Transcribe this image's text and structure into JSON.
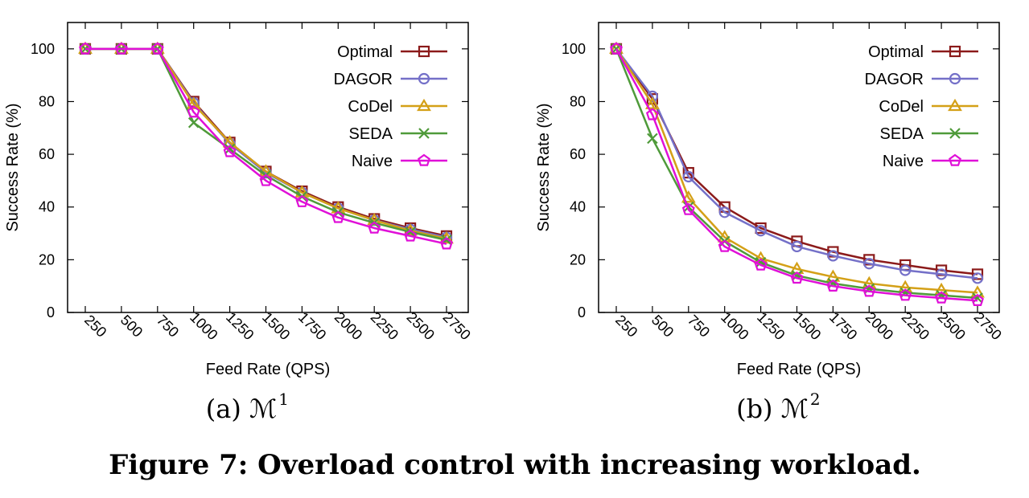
{
  "figure": {
    "caption": "Figure 7: Overload control with increasing workload."
  },
  "series_styles": [
    {
      "name": "Optimal",
      "color": "#8b1a1a",
      "marker": "square"
    },
    {
      "name": "DAGOR",
      "color": "#7470c8",
      "marker": "circle"
    },
    {
      "name": "CoDel",
      "color": "#d4a017",
      "marker": "triangle"
    },
    {
      "name": "SEDA",
      "color": "#4f9a3a",
      "marker": "cross"
    },
    {
      "name": "Naive",
      "color": "#e010d8",
      "marker": "pentagon"
    }
  ],
  "chart_data": [
    {
      "type": "line",
      "subcaption": "(a) ℳ",
      "subcaption_sup": "1",
      "xlabel": "Feed Rate (QPS)",
      "ylabel": "Success Rate (%)",
      "ylim": [
        0,
        110
      ],
      "yticks": [
        0,
        20,
        40,
        60,
        80,
        100
      ],
      "categories": [
        "250",
        "500",
        "750",
        "1000",
        "1250",
        "1500",
        "1750",
        "2000",
        "2250",
        "2500",
        "2750"
      ],
      "legend_position": "top-right",
      "grid": false,
      "series": [
        {
          "name": "Optimal",
          "values": [
            100,
            100,
            100,
            80,
            64.5,
            53.5,
            46,
            40,
            35.5,
            32,
            29
          ]
        },
        {
          "name": "DAGOR",
          "values": [
            100,
            100,
            100,
            79.5,
            64,
            53,
            45.5,
            39.5,
            35,
            31.5,
            28.5
          ]
        },
        {
          "name": "CoDel",
          "values": [
            100,
            100,
            100,
            79,
            64.5,
            53.5,
            45.5,
            39.5,
            35,
            31,
            28
          ]
        },
        {
          "name": "SEDA",
          "values": [
            100,
            100,
            100,
            72,
            62,
            52,
            44,
            38,
            34,
            30.5,
            27.5
          ]
        },
        {
          "name": "Naive",
          "values": [
            100,
            100,
            100,
            76,
            61,
            50,
            42,
            36,
            32,
            29,
            26
          ]
        }
      ]
    },
    {
      "type": "line",
      "subcaption": "(b) ℳ",
      "subcaption_sup": "2",
      "xlabel": "Feed Rate (QPS)",
      "ylabel": "Success Rate (%)",
      "ylim": [
        0,
        110
      ],
      "yticks": [
        0,
        20,
        40,
        60,
        80,
        100
      ],
      "categories": [
        "250",
        "500",
        "750",
        "1000",
        "1250",
        "1500",
        "1750",
        "2000",
        "2250",
        "2500",
        "2750"
      ],
      "legend_position": "top-right",
      "grid": false,
      "series": [
        {
          "name": "Optimal",
          "values": [
            100,
            81,
            53,
            40,
            32,
            27,
            23,
            20,
            18,
            16,
            14.5
          ]
        },
        {
          "name": "DAGOR",
          "values": [
            100,
            82,
            51.5,
            38,
            31,
            25,
            21.5,
            18.5,
            16,
            14.5,
            13
          ]
        },
        {
          "name": "CoDel",
          "values": [
            100,
            79,
            43.5,
            28.5,
            20.5,
            16.5,
            13.5,
            11,
            9.5,
            8.5,
            7.5
          ]
        },
        {
          "name": "SEDA",
          "values": [
            100,
            66,
            40,
            27,
            19,
            14,
            11,
            9,
            7.5,
            6.5,
            5.5
          ]
        },
        {
          "name": "Naive",
          "values": [
            100,
            75,
            39,
            25,
            18,
            13,
            10,
            8,
            6.5,
            5.5,
            4.5
          ]
        }
      ]
    }
  ]
}
